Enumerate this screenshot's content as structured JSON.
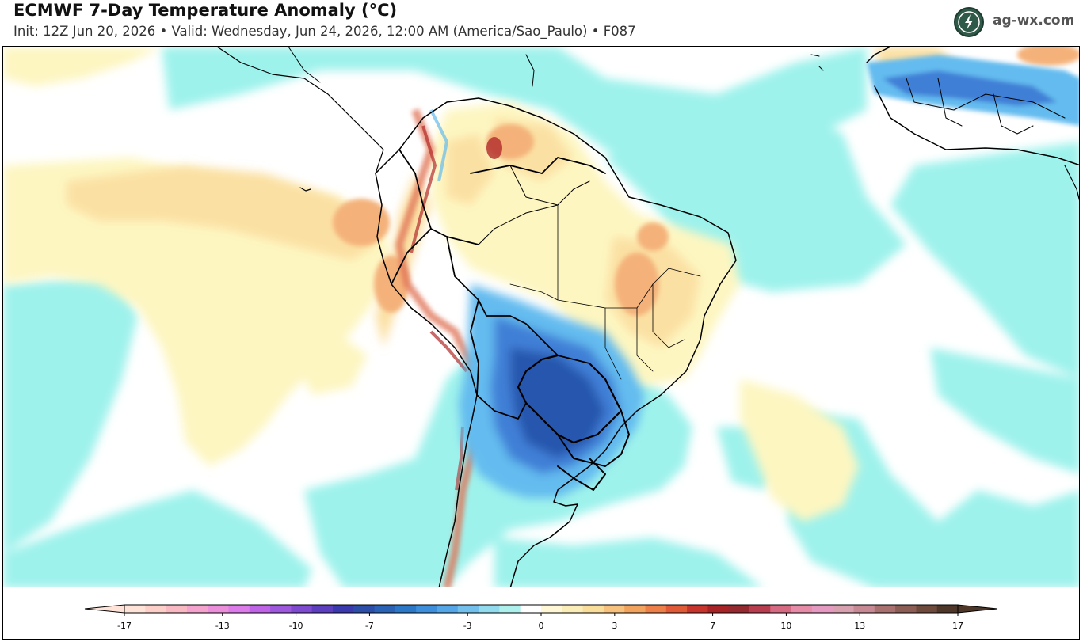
{
  "header": {
    "title": "ECMWF 7-Day Temperature Anomaly (°C)",
    "subtitle": "Init: 12Z Jun 20, 2026  •  Valid: Wednesday, Jun 24, 2026, 12:00 AM (America/Sao_Paulo)  •  F087"
  },
  "brand": {
    "name": "ag-wx.com",
    "logo_icon": "lightning-bolt-icon"
  },
  "map": {
    "region": "South America",
    "colors": {
      "ocean_neutral": "#ffffff",
      "slight_cool": "#9ef2ec",
      "cool": "#63bbef",
      "cold": "#3f7fd6",
      "very_cold": "#2857ad",
      "slight_warm": "#fdf6c1",
      "warm": "#fbe0a3",
      "hot": "#f4b27a",
      "very_hot": "#e07255",
      "extreme_hot": "#b22b2b",
      "border_line": "#000000"
    }
  },
  "colorbar": {
    "min": -17,
    "max": 17,
    "tick_labels": [
      "-17",
      "-13",
      "-10",
      "-7",
      "-3",
      "0",
      "3",
      "7",
      "10",
      "13",
      "17"
    ],
    "tick_values": [
      -17,
      -13,
      -10,
      -7,
      -3,
      0,
      3,
      7,
      10,
      13,
      17
    ],
    "colors": [
      "#ffe3d8",
      "#fcd0c8",
      "#f9b9c2",
      "#f3a3cd",
      "#eb8fdb",
      "#dc7bea",
      "#bf63e7",
      "#9e58dd",
      "#7d4ad0",
      "#5c3fbf",
      "#3b39ae",
      "#2c4ea8",
      "#2a63b6",
      "#2b78c8",
      "#3d8fdb",
      "#55a6e6",
      "#74c0ec",
      "#92dbef",
      "#aef0ec",
      "#ffffff",
      "#fff7d6",
      "#fbedb7",
      "#f9dd9b",
      "#f7c27d",
      "#f2a45f",
      "#ed8048",
      "#e15a37",
      "#c7342b",
      "#a82326",
      "#94292f",
      "#b83d4f",
      "#d56a82",
      "#e68ca8",
      "#e59ac1",
      "#d7a1b0",
      "#c78a94",
      "#a8706f",
      "#8c5d55",
      "#6e4a3c",
      "#4e3728"
    ]
  }
}
